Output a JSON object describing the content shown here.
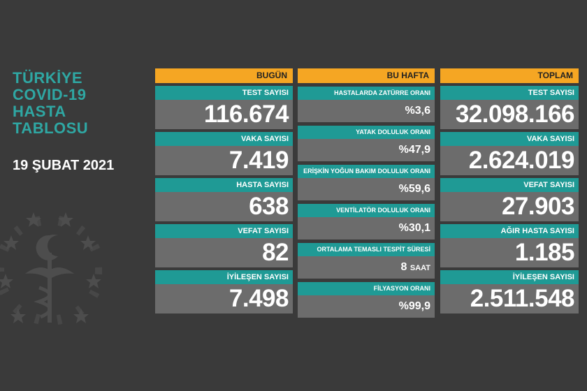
{
  "title": {
    "lines": [
      "TÜRKİYE",
      "COVID-19",
      "HASTA",
      "TABLOSU"
    ],
    "date": "19 ŞUBAT 2021"
  },
  "colors": {
    "background": "#3a3a3a",
    "header_orange": "#f5a623",
    "label_teal": "#1f9a95",
    "value_gray": "#6c6c6c",
    "title_teal": "#2fa7a3"
  },
  "today": {
    "header": "BUGÜN",
    "cards": [
      {
        "label": "TEST SAYISI",
        "value": "116.674"
      },
      {
        "label": "VAKA SAYISI",
        "value": "7.419"
      },
      {
        "label": "HASTA SAYISI",
        "value": "638"
      },
      {
        "label": "VEFAT SAYISI",
        "value": "82"
      },
      {
        "label": "İYİLEŞEN SAYISI",
        "value": "7.498"
      }
    ]
  },
  "week": {
    "header": "BU HAFTA",
    "cards": [
      {
        "label": "HASTALARDA ZATÜRRE ORANI",
        "value": "%3,6"
      },
      {
        "label": "YATAK DOLULUK ORANI",
        "value": "%47,9"
      },
      {
        "label": "ERİŞKİN YOĞUN BAKIM DOLULUK ORANI",
        "value": "%59,6"
      },
      {
        "label": "VENTİLATÖR DOLULUK ORANI",
        "value": "%30,1"
      },
      {
        "label": "ORTALAMA TEMASLI TESPİT SÜRESİ",
        "value": "8",
        "unit": "SAAT"
      },
      {
        "label": "FİLYASYON ORANI",
        "value": "%99,9"
      }
    ]
  },
  "total": {
    "header": "TOPLAM",
    "cards": [
      {
        "label": "TEST SAYISI",
        "value": "32.098.166"
      },
      {
        "label": "VAKA SAYISI",
        "value": "2.624.019"
      },
      {
        "label": "VEFAT SAYISI",
        "value": "27.903"
      },
      {
        "label": "AĞIR HASTA SAYISI",
        "value": "1.185"
      },
      {
        "label": "İYİLEŞEN SAYISI",
        "value": "2.511.548"
      }
    ]
  },
  "emblem": {
    "icon": "ministry-of-health-emblem-icon"
  }
}
